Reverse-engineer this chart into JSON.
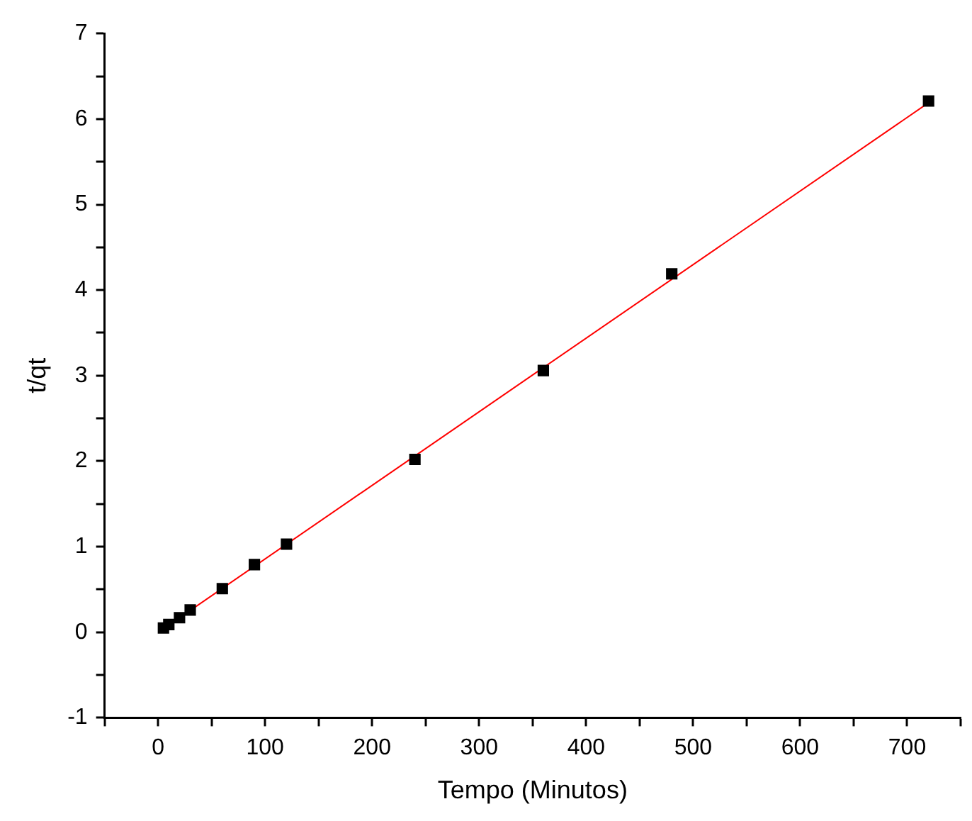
{
  "chart_data": {
    "type": "scatter",
    "xlabel": "Tempo (Minutos)",
    "ylabel": "t/qt",
    "marker": "square",
    "grid": false,
    "legend": false,
    "xlim": [
      -50,
      750
    ],
    "xticks": [
      {
        "value": -50,
        "label": null
      },
      0,
      {
        "value": 50,
        "label": null
      },
      100,
      {
        "value": 150,
        "label": null
      },
      200,
      {
        "value": 250,
        "label": null
      },
      300,
      {
        "value": 350,
        "label": null
      },
      400,
      {
        "value": 450,
        "label": null
      },
      500,
      {
        "value": 550,
        "label": null
      },
      600,
      {
        "value": 650,
        "label": null
      },
      700,
      {
        "value": 750,
        "label": null
      }
    ],
    "ylim": [
      -1,
      7
    ],
    "yticks": [
      -1,
      {
        "value": -0.5,
        "label": null
      },
      0,
      {
        "value": 0.5,
        "label": null
      },
      1,
      {
        "value": 1.5,
        "label": null
      },
      2,
      {
        "value": 2.5,
        "label": null
      },
      3,
      {
        "value": 3.5,
        "label": null
      },
      4,
      {
        "value": 4.5,
        "label": null
      },
      5,
      {
        "value": 5.5,
        "label": null
      },
      6,
      {
        "value": 6.5,
        "label": null
      },
      7
    ],
    "series": [
      {
        "type": "scatter",
        "color": "#000000",
        "x": [
          5,
          10,
          20,
          30,
          60,
          90,
          120,
          240,
          360,
          480,
          720
        ],
        "values": [
          0.05,
          0.09,
          0.17,
          0.26,
          0.51,
          0.79,
          1.03,
          2.02,
          3.06,
          4.19,
          6.21
        ]
      },
      {
        "type": "line",
        "color": "#ff0000",
        "x": [
          5,
          720
        ],
        "values": [
          0.04,
          6.19
        ],
        "marker": "none"
      }
    ]
  }
}
